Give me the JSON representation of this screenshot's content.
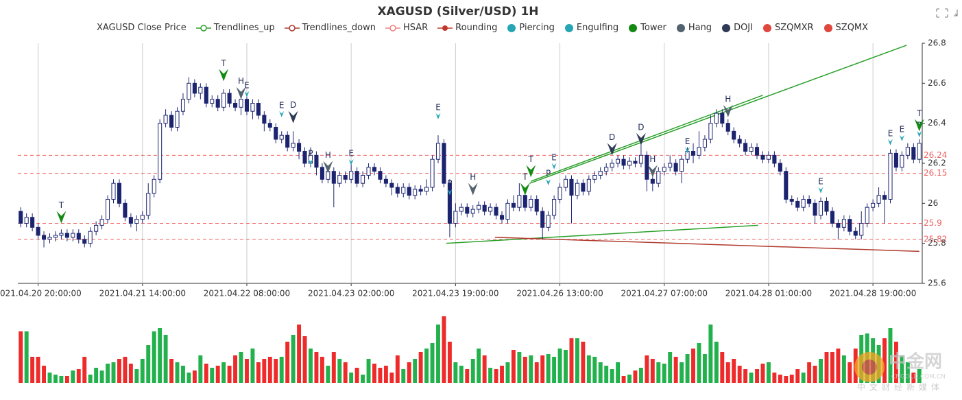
{
  "chart_data": {
    "type": "candlestick",
    "title": "XAGUSD (Silver/USD) 1H",
    "legend": [
      {
        "name": "XAGUSD Close Price",
        "color": "#ffffff",
        "icon": "none"
      },
      {
        "name": "Trendlines_up",
        "color": "#2aa02a",
        "icon": "line-circle"
      },
      {
        "name": "Trendlines_down",
        "color": "#b03a2e",
        "icon": "line-circle"
      },
      {
        "name": "HSAR",
        "color": "#f08080",
        "icon": "line-circle"
      },
      {
        "name": "Rounding",
        "color": "#c0392b",
        "icon": "line-dot"
      },
      {
        "name": "Piercing",
        "color": "#26a6b5",
        "icon": "dot"
      },
      {
        "name": "Engulfing",
        "color": "#26a6b5",
        "icon": "dot"
      },
      {
        "name": "Tower",
        "color": "#138a13",
        "icon": "dot"
      },
      {
        "name": "Hang",
        "color": "#53626f",
        "icon": "dot"
      },
      {
        "name": "DOJI",
        "color": "#2e3a56",
        "icon": "dot"
      },
      {
        "name": "SZQMXR",
        "color": "#e0483e",
        "icon": "dot"
      },
      {
        "name": "SZQMX",
        "color": "#e0483e",
        "icon": "dot"
      }
    ],
    "categories": [
      null,
      null,
      null,
      "2021.04.20 20:00:00",
      null,
      null,
      null,
      null,
      null,
      null,
      null,
      null,
      null,
      null,
      null,
      null,
      null,
      null,
      null,
      null,
      null,
      "2021.04.21 14:00:00",
      null,
      null,
      null,
      null,
      null,
      null,
      null,
      null,
      null,
      null,
      null,
      null,
      null,
      null,
      null,
      null,
      null,
      "2021.04.22 08:00:00",
      null,
      null,
      null,
      null,
      null,
      null,
      null,
      null,
      null,
      null,
      null,
      null,
      null,
      null,
      null,
      null,
      null,
      "2021.04.23 02:00:00",
      null,
      null,
      null,
      null,
      null,
      null,
      null,
      null,
      null,
      null,
      null,
      null,
      null,
      null,
      null,
      null,
      null,
      "2021.04.23 19:00:00",
      null,
      null,
      null,
      null,
      null,
      null,
      null,
      null,
      null,
      null,
      null,
      null,
      null,
      null,
      null,
      null,
      null,
      "2021.04.26 13:00:00",
      null,
      null,
      null,
      null,
      null,
      null,
      null,
      null,
      null,
      null,
      null,
      null,
      null,
      null,
      null,
      null,
      null,
      "2021.04.27 07:00:00",
      null,
      null,
      null,
      null,
      null,
      null,
      null,
      null,
      null,
      null,
      null,
      null,
      null,
      null,
      null,
      null,
      null,
      "2021.04.28 01:00:00",
      null,
      null,
      null,
      null,
      null,
      null,
      null,
      null,
      null,
      null,
      null,
      null,
      null,
      null,
      null,
      null,
      null,
      "2021.04.28 19:00:00",
      null,
      null,
      null,
      null,
      null,
      null,
      null,
      null
    ],
    "open": [
      25.96,
      25.9,
      25.93,
      25.88,
      25.84,
      25.82,
      25.83,
      25.84,
      25.85,
      25.83,
      25.85,
      25.82,
      25.8,
      25.86,
      25.89,
      25.92,
      26.02,
      26.1,
      26.0,
      25.93,
      25.9,
      25.92,
      25.94,
      26.05,
      26.12,
      26.4,
      26.44,
      26.38,
      26.46,
      26.52,
      26.6,
      26.55,
      26.58,
      26.5,
      26.52,
      26.48,
      26.55,
      26.5,
      26.48,
      26.52,
      26.46,
      26.5,
      26.44,
      26.4,
      26.38,
      26.32,
      26.34,
      26.28,
      26.3,
      26.26,
      26.2,
      26.24,
      26.18,
      26.12,
      26.16,
      26.1,
      26.14,
      26.12,
      26.16,
      26.1,
      26.14,
      26.18,
      26.16,
      26.12,
      26.1,
      26.08,
      26.05,
      26.08,
      26.04,
      26.07,
      26.06,
      26.08,
      26.22,
      26.3,
      26.1,
      25.9,
      25.96,
      25.98,
      25.95,
      25.97,
      25.99,
      25.96,
      25.98,
      25.94,
      25.92,
      26.0,
      25.98,
      26.04,
      25.98,
      26.02,
      25.96,
      25.88,
      25.94,
      26.02,
      26.08,
      26.12,
      26.04,
      26.1,
      26.06,
      26.12,
      26.14,
      26.16,
      26.18,
      26.2,
      26.22,
      26.19,
      26.21,
      26.2,
      26.24,
      26.12,
      26.1,
      26.16,
      26.18,
      26.2,
      26.16,
      26.22,
      26.26,
      26.24,
      26.28,
      26.32,
      26.4,
      26.45,
      26.4,
      26.36,
      26.32,
      26.3,
      26.26,
      26.28,
      26.24,
      26.22,
      26.24,
      26.2,
      26.16,
      26.02,
      26.01,
      25.98,
      26.02,
      26.0,
      25.94,
      26.01,
      25.96,
      25.9,
      25.88,
      25.92,
      25.86,
      25.84,
      25.9,
      25.98,
      26.0,
      26.04,
      26.02,
      26.25,
      26.18,
      26.24,
      26.28,
      26.22
    ],
    "high": [
      25.98,
      25.95,
      25.95,
      25.9,
      25.86,
      25.85,
      25.86,
      25.87,
      25.87,
      25.87,
      25.87,
      25.84,
      25.88,
      25.91,
      25.94,
      26.04,
      26.12,
      26.12,
      26.02,
      25.95,
      25.94,
      25.96,
      26.1,
      26.14,
      26.42,
      26.47,
      26.46,
      26.48,
      26.55,
      26.63,
      26.62,
      26.6,
      26.6,
      26.54,
      26.54,
      26.57,
      26.57,
      26.52,
      26.54,
      26.54,
      26.52,
      26.52,
      26.46,
      26.42,
      26.4,
      26.36,
      26.36,
      26.36,
      26.32,
      26.28,
      26.28,
      26.26,
      26.2,
      26.18,
      26.18,
      26.16,
      26.16,
      26.2,
      26.18,
      26.16,
      26.2,
      26.2,
      26.18,
      26.14,
      26.12,
      26.1,
      26.1,
      26.1,
      26.09,
      26.09,
      26.12,
      26.24,
      26.34,
      26.32,
      26.12,
      26.0,
      26.0,
      26.0,
      25.99,
      26.01,
      26.01,
      26.0,
      26.0,
      25.96,
      26.02,
      26.04,
      26.1,
      26.06,
      26.04,
      26.04,
      25.98,
      25.96,
      26.04,
      26.1,
      26.14,
      26.14,
      26.12,
      26.12,
      26.14,
      26.16,
      26.18,
      26.2,
      26.22,
      26.24,
      26.24,
      26.23,
      26.23,
      26.3,
      26.26,
      26.14,
      26.18,
      26.2,
      26.24,
      26.22,
      26.24,
      26.28,
      26.3,
      26.36,
      26.34,
      26.44,
      26.47,
      26.47,
      26.42,
      26.38,
      26.34,
      26.32,
      26.3,
      26.3,
      26.26,
      26.26,
      26.26,
      26.22,
      26.18,
      26.04,
      26.03,
      26.04,
      26.04,
      26.02,
      26.03,
      26.03,
      25.98,
      25.92,
      25.94,
      25.94,
      25.88,
      25.96,
      26.0,
      26.02,
      26.08,
      26.06,
      26.27,
      26.27,
      26.26,
      26.3,
      26.3,
      26.32
    ],
    "low": [
      25.88,
      25.88,
      25.86,
      25.82,
      25.78,
      25.8,
      25.81,
      25.82,
      25.81,
      25.81,
      25.8,
      25.78,
      25.78,
      25.84,
      25.87,
      25.9,
      26.0,
      25.98,
      25.91,
      25.88,
      25.86,
      25.9,
      25.92,
      26.03,
      26.1,
      26.38,
      26.36,
      26.36,
      26.44,
      26.5,
      26.53,
      26.52,
      26.48,
      26.48,
      26.46,
      26.46,
      26.48,
      26.46,
      26.44,
      26.44,
      26.42,
      26.42,
      26.36,
      26.36,
      26.3,
      26.3,
      26.26,
      26.26,
      26.22,
      26.18,
      26.18,
      26.14,
      26.1,
      26.1,
      25.98,
      26.08,
      26.1,
      26.1,
      26.08,
      26.08,
      26.12,
      26.14,
      26.1,
      26.08,
      26.04,
      26.03,
      26.03,
      26.02,
      26.02,
      26.04,
      26.04,
      26.06,
      26.2,
      26.08,
      25.83,
      25.88,
      25.94,
      25.93,
      25.93,
      25.95,
      25.94,
      25.94,
      25.92,
      25.9,
      25.9,
      25.96,
      25.96,
      25.96,
      25.96,
      25.94,
      25.82,
      25.86,
      25.92,
      26.0,
      26.06,
      25.9,
      26.02,
      26.04,
      26.04,
      26.1,
      26.12,
      26.14,
      26.16,
      26.18,
      26.17,
      26.17,
      26.18,
      26.18,
      26.06,
      26.06,
      26.08,
      26.14,
      26.16,
      26.14,
      26.1,
      26.2,
      26.2,
      26.22,
      26.26,
      26.3,
      26.38,
      26.38,
      26.34,
      26.3,
      26.28,
      26.24,
      26.24,
      26.22,
      26.2,
      26.2,
      26.18,
      26.14,
      26.0,
      25.99,
      25.96,
      25.96,
      25.98,
      25.9,
      25.92,
      25.94,
      25.88,
      25.82,
      25.86,
      25.84,
      25.82,
      25.82,
      25.88,
      25.96,
      25.98,
      25.9,
      26.0,
      26.16,
      26.16,
      26.22,
      26.2,
      26.2
    ],
    "close": [
      25.9,
      25.93,
      25.88,
      25.84,
      25.82,
      25.83,
      25.84,
      25.85,
      25.83,
      25.85,
      25.82,
      25.8,
      25.86,
      25.89,
      25.92,
      26.02,
      26.1,
      26.0,
      25.93,
      25.9,
      25.92,
      25.94,
      26.05,
      26.12,
      26.4,
      26.44,
      26.38,
      26.46,
      26.52,
      26.6,
      26.55,
      26.58,
      26.5,
      26.52,
      26.48,
      26.55,
      26.5,
      26.48,
      26.52,
      26.46,
      26.5,
      26.44,
      26.4,
      26.38,
      26.32,
      26.34,
      26.28,
      26.3,
      26.26,
      26.2,
      26.24,
      26.18,
      26.12,
      26.16,
      26.1,
      26.14,
      26.12,
      26.16,
      26.1,
      26.14,
      26.18,
      26.16,
      26.12,
      26.1,
      26.08,
      26.05,
      26.08,
      26.04,
      26.07,
      26.06,
      26.08,
      26.22,
      26.3,
      26.1,
      25.9,
      25.96,
      25.98,
      25.95,
      25.97,
      25.99,
      25.96,
      25.98,
      25.94,
      25.92,
      26.0,
      25.98,
      26.04,
      25.98,
      26.02,
      25.96,
      25.88,
      25.94,
      26.02,
      26.08,
      26.12,
      26.04,
      26.1,
      26.06,
      26.12,
      26.14,
      26.16,
      26.18,
      26.2,
      26.22,
      26.19,
      26.21,
      26.2,
      26.24,
      26.12,
      26.1,
      26.16,
      26.18,
      26.2,
      26.16,
      26.22,
      26.26,
      26.24,
      26.28,
      26.32,
      26.4,
      26.45,
      26.4,
      26.36,
      26.32,
      26.3,
      26.26,
      26.28,
      26.24,
      26.22,
      26.24,
      26.2,
      26.16,
      26.02,
      26.01,
      25.98,
      26.02,
      26.0,
      25.94,
      26.01,
      25.96,
      25.9,
      25.88,
      25.92,
      25.86,
      25.84,
      25.9,
      25.98,
      26.0,
      26.04,
      26.02,
      26.25,
      26.18,
      26.24,
      26.28,
      26.22,
      26.3
    ],
    "up_color": "#ffffff",
    "down_color": "#1c2470",
    "wick_color": "#1c2470",
    "volume": [
      75,
      75,
      38,
      38,
      25,
      15,
      12,
      10,
      10,
      18,
      20,
      38,
      12,
      22,
      18,
      28,
      30,
      35,
      38,
      28,
      20,
      35,
      55,
      75,
      80,
      70,
      35,
      30,
      25,
      15,
      18,
      40,
      28,
      22,
      25,
      30,
      25,
      40,
      45,
      35,
      50,
      30,
      35,
      38,
      35,
      38,
      60,
      70,
      85,
      68,
      50,
      45,
      38,
      25,
      45,
      35,
      30,
      15,
      22,
      12,
      35,
      28,
      22,
      25,
      15,
      40,
      20,
      30,
      35,
      45,
      50,
      58,
      85,
      97,
      60,
      30,
      25,
      20,
      35,
      50,
      40,
      22,
      20,
      25,
      30,
      48,
      45,
      38,
      40,
      30,
      40,
      42,
      38,
      50,
      48,
      65,
      65,
      60,
      40,
      38,
      30,
      25,
      20,
      30,
      10,
      12,
      18,
      22,
      40,
      35,
      30,
      28,
      45,
      38,
      30,
      42,
      50,
      58,
      42,
      85,
      60,
      45,
      30,
      35,
      25,
      20,
      15,
      20,
      28,
      30,
      15,
      12,
      10,
      12,
      20,
      15,
      30,
      25,
      35,
      45,
      45,
      50,
      40,
      30,
      50,
      70,
      72,
      65,
      55,
      65,
      80,
      60,
      40,
      30,
      15,
      20
    ],
    "volume_ylim": [
      0,
      100
    ],
    "volume_up_color": "#22b14c",
    "volume_down_color": "#ee2b2b",
    "ylim": [
      25.6,
      26.8
    ],
    "yticks": [
      25.6,
      25.8,
      26,
      26.2,
      26.4,
      26.6,
      26.8
    ],
    "grid": true,
    "hsar_levels": [
      26.24,
      26.15,
      25.9,
      25.82
    ],
    "hsar_color": "#f06060",
    "trendlines": [
      {
        "x": [
          88,
          128
        ],
        "y": [
          26.11,
          26.54
        ],
        "color": "#2aa02a"
      },
      {
        "x": [
          87.8,
          152.8
        ],
        "y": [
          26.1,
          26.79
        ],
        "color": "#2aa02a"
      },
      {
        "x": [
          73.4,
          127.2
        ],
        "y": [
          25.8,
          25.89
        ],
        "color": "#2aa02a"
      },
      {
        "x": [
          81.8,
          155
        ],
        "y": [
          25.83,
          25.76
        ],
        "color": "#b03a2e"
      }
    ],
    "markers": [
      {
        "label": "T",
        "index": 7,
        "value": 25.9,
        "color": "#138a13",
        "size": "large"
      },
      {
        "label": "T",
        "index": 35,
        "value": 26.61,
        "color": "#138a13",
        "size": "large"
      },
      {
        "label": "H",
        "index": 38,
        "value": 26.52,
        "color": "#53626f",
        "size": "large"
      },
      {
        "label": "E",
        "index": 39,
        "value": 26.53,
        "color": "#26a6b5",
        "size": "small"
      },
      {
        "label": "E",
        "index": 45,
        "value": 26.43,
        "color": "#26a6b5",
        "size": "small"
      },
      {
        "label": "D",
        "index": 47,
        "value": 26.4,
        "color": "#2e3a56",
        "size": "large"
      },
      {
        "label": "P",
        "index": 50,
        "value": 26.19,
        "color": "#26a6b5",
        "size": "small"
      },
      {
        "label": "H",
        "index": 53,
        "value": 26.15,
        "color": "#53626f",
        "size": "large"
      },
      {
        "label": "E",
        "index": 57,
        "value": 26.19,
        "color": "#26a6b5",
        "size": "small"
      },
      {
        "label": "E",
        "index": 72,
        "value": 26.42,
        "color": "#26a6b5",
        "size": "small"
      },
      {
        "label": "P",
        "index": 74,
        "value": 26.04,
        "color": "#26a6b5",
        "size": "small"
      },
      {
        "label": "H",
        "index": 78,
        "value": 26.04,
        "color": "#53626f",
        "size": "large"
      },
      {
        "label": "T",
        "index": 87,
        "value": 26.04,
        "color": "#138a13",
        "size": "large"
      },
      {
        "label": "T",
        "index": 88,
        "value": 26.13,
        "color": "#138a13",
        "size": "large"
      },
      {
        "label": "P",
        "index": 91,
        "value": 26.09,
        "color": "#26a6b5",
        "size": "small"
      },
      {
        "label": "E",
        "index": 92,
        "value": 26.17,
        "color": "#26a6b5",
        "size": "small"
      },
      {
        "label": "D",
        "index": 102,
        "value": 26.24,
        "color": "#2e3a56",
        "size": "large"
      },
      {
        "label": "D",
        "index": 107,
        "value": 26.29,
        "color": "#2e3a56",
        "size": "large"
      },
      {
        "label": "H",
        "index": 109,
        "value": 26.13,
        "color": "#53626f",
        "size": "large"
      },
      {
        "label": "E",
        "index": 115,
        "value": 26.25,
        "color": "#26a6b5",
        "size": "small"
      },
      {
        "label": "H",
        "index": 122,
        "value": 26.43,
        "color": "#53626f",
        "size": "large"
      },
      {
        "label": "E",
        "index": 138,
        "value": 26.05,
        "color": "#26a6b5",
        "size": "small"
      },
      {
        "label": "E",
        "index": 150,
        "value": 26.29,
        "color": "#26a6b5",
        "size": "small"
      },
      {
        "label": "E",
        "index": 152,
        "value": 26.31,
        "color": "#26a6b5",
        "size": "small"
      },
      {
        "label": "P",
        "index": 155,
        "value": 26.33,
        "color": "#26a6b5",
        "size": "small"
      },
      {
        "label": "T",
        "index": 155,
        "value": 26.36,
        "color": "#138a13",
        "size": "large"
      }
    ],
    "watermark": {
      "brand": "中金网",
      "site": "CNGOLD.COM.CN",
      "slogan": "中文财经新媒体"
    }
  }
}
